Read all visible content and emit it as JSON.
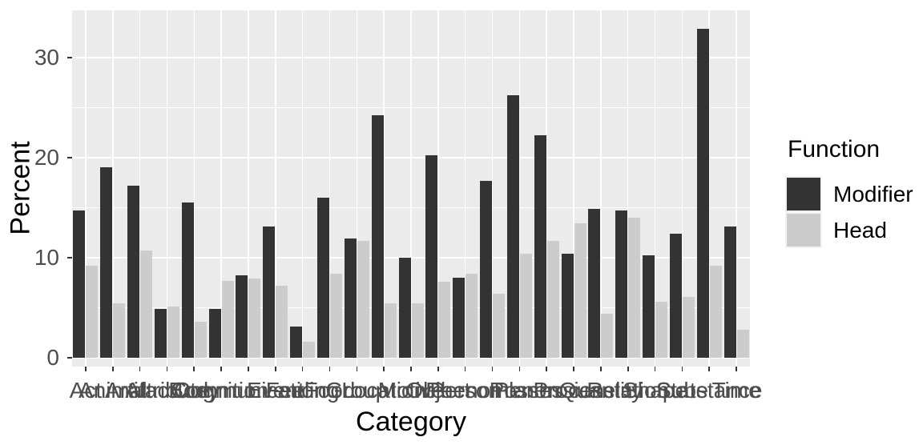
{
  "chart_data": {
    "type": "bar",
    "title": "",
    "xlabel": "Category",
    "ylabel": "Percent",
    "categories": [
      "Act",
      "Animal",
      "Artifact",
      "Attribute",
      "Body",
      "Cognition",
      "Communication",
      "Event",
      "Feeling",
      "Food",
      "Group",
      "Location",
      "Motive",
      "Object",
      "Person",
      "Phenomenon",
      "Plant",
      "Possession",
      "Process",
      "Quantity",
      "Relation",
      "Shape",
      "State",
      "Substance",
      "Time"
    ],
    "series": [
      {
        "name": "Modifier",
        "color": "#333333",
        "values": [
          14.7,
          19.0,
          17.2,
          4.9,
          15.5,
          4.9,
          8.2,
          13.1,
          3.1,
          16.0,
          11.9,
          24.2,
          10.0,
          20.2,
          8.0,
          17.7,
          26.2,
          22.2,
          10.4,
          14.9,
          14.7,
          10.2,
          12.4,
          32.9,
          13.1
        ]
      },
      {
        "name": "Head",
        "color": "#CCCCCC",
        "values": [
          9.2,
          5.4,
          10.7,
          5.1,
          3.6,
          7.7,
          7.9,
          7.2,
          1.6,
          8.4,
          11.7,
          5.4,
          5.4,
          7.6,
          8.4,
          6.4,
          10.4,
          11.7,
          13.4,
          4.4,
          14.0,
          5.6,
          6.1,
          9.2,
          2.8
        ]
      }
    ],
    "y_ticks": [
      0,
      10,
      20,
      30
    ],
    "y_minor_ticks": [
      5,
      15,
      25
    ],
    "ylim": [
      0,
      34.7
    ],
    "grid": true,
    "legend": {
      "title": "Function",
      "position": "right"
    },
    "colors": {
      "panel_background": "#EBEBEB",
      "gridline": "#FFFFFF",
      "axis_text": "#4D4D4D",
      "axis_title": "#000000",
      "tick_mark": "#333333",
      "legend_key_background": "#F2F2F2"
    }
  }
}
